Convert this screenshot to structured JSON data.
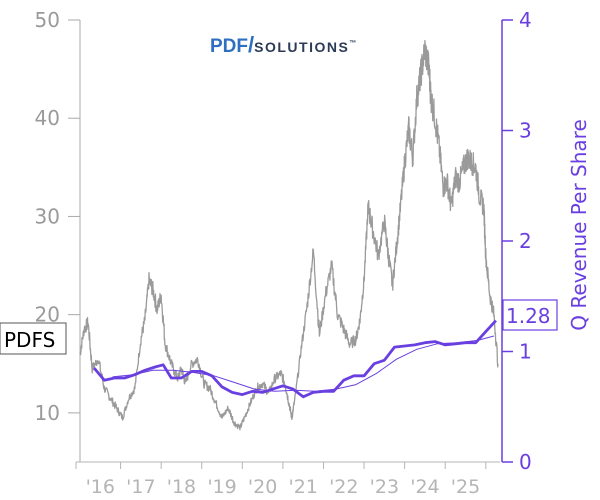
{
  "logo": {
    "part1": "PDF",
    "slash": "/",
    "part2": "SOLUTIONS",
    "tm": "™",
    "color_primary": "#2f6fbf",
    "color_secondary": "#2b3a55"
  },
  "ticker": "PDFS",
  "chart_data": {
    "type": "line",
    "title": "",
    "xlabel": "",
    "x_ticks": [
      "'16",
      "'17",
      "'18",
      "'19",
      "'20",
      "'21",
      "'22",
      "'23",
      "'24",
      "'25"
    ],
    "x_range": [
      2015.0,
      2025.35
    ],
    "y_left": {
      "label": "",
      "range": [
        5,
        50
      ],
      "ticks": [
        10,
        20,
        30,
        40,
        50
      ],
      "color": "#9a9a9a"
    },
    "y_right": {
      "label": "Q Revenue Per Share",
      "range": [
        0,
        4
      ],
      "ticks": [
        0,
        1,
        2,
        3,
        4
      ],
      "color": "#6a3fe0"
    },
    "last_value_label": "1.28",
    "series": [
      {
        "axis": "left",
        "color": "#9a9a9a",
        "noisy": true,
        "x": [
          2015.0,
          2015.1,
          2015.2,
          2015.3,
          2015.45,
          2015.6,
          2015.75,
          2015.9,
          2016.05,
          2016.2,
          2016.35,
          2016.5,
          2016.6,
          2016.7,
          2016.8,
          2016.9,
          2017.0,
          2017.1,
          2017.25,
          2017.4,
          2017.5,
          2017.6,
          2017.75,
          2017.9,
          2018.05,
          2018.2,
          2018.35,
          2018.5,
          2018.65,
          2018.8,
          2018.95,
          2019.05,
          2019.2,
          2019.35,
          2019.5,
          2019.65,
          2019.8,
          2019.95,
          2020.05,
          2020.15,
          2020.22,
          2020.3,
          2020.45,
          2020.6,
          2020.75,
          2020.9,
          2021.05,
          2021.2,
          2021.35,
          2021.5,
          2021.65,
          2021.8,
          2021.9,
          2022.0,
          2022.1,
          2022.2,
          2022.35,
          2022.5,
          2022.6,
          2022.7,
          2022.8,
          2022.9,
          2023.0,
          2023.1,
          2023.2,
          2023.3,
          2023.4,
          2023.5,
          2023.6,
          2023.65,
          2023.75,
          2023.85,
          2023.95,
          2024.05,
          2024.15,
          2024.25,
          2024.35,
          2024.45,
          2024.55,
          2024.65,
          2024.75,
          2024.85,
          2024.95,
          2025.0,
          2025.1,
          2025.2,
          2025.3
        ],
        "y": [
          16,
          18.5,
          19.2,
          14.5,
          15.5,
          12.5,
          11.5,
          10.5,
          9.5,
          11.5,
          12.5,
          17.5,
          19.5,
          23.5,
          22.5,
          20.5,
          22,
          17,
          15,
          13.5,
          14.5,
          13,
          15,
          15.5,
          13,
          12.5,
          11,
          9.5,
          10.5,
          9,
          8.5,
          9.5,
          11,
          12.5,
          13,
          12,
          13.5,
          14,
          13,
          11,
          9.5,
          11.5,
          16.5,
          21,
          26.5,
          18,
          22,
          25,
          20,
          18.5,
          17,
          17.5,
          19.5,
          23.5,
          31,
          29,
          26,
          29.5,
          26,
          23,
          27,
          31,
          35.5,
          39,
          36,
          42,
          44.5,
          47,
          45,
          42,
          40,
          37,
          33,
          33.5,
          31,
          34,
          33.5,
          35,
          36,
          35.5,
          35,
          32,
          31,
          26,
          22,
          20,
          15
        ]
      },
      {
        "axis": "right",
        "color": "#6a3fe0",
        "width": 2.8,
        "x": [
          2015.35,
          2015.6,
          2015.85,
          2016.1,
          2016.35,
          2016.6,
          2016.85,
          2017.05,
          2017.25,
          2017.5,
          2017.75,
          2018.0,
          2018.25,
          2018.5,
          2018.75,
          2019.0,
          2019.25,
          2019.5,
          2019.75,
          2020.0,
          2020.25,
          2020.5,
          2020.75,
          2021.0,
          2021.25,
          2021.5,
          2021.75,
          2022.0,
          2022.25,
          2022.5,
          2022.75,
          2023.0,
          2023.25,
          2023.5,
          2023.75,
          2024.0,
          2024.25,
          2024.5,
          2024.75,
          2025.0,
          2025.25
        ],
        "y": [
          0.85,
          0.74,
          0.76,
          0.76,
          0.79,
          0.83,
          0.86,
          0.88,
          0.76,
          0.76,
          0.82,
          0.82,
          0.78,
          0.68,
          0.63,
          0.61,
          0.64,
          0.63,
          0.66,
          0.69,
          0.66,
          0.59,
          0.63,
          0.64,
          0.64,
          0.74,
          0.78,
          0.78,
          0.89,
          0.92,
          1.04,
          1.05,
          1.06,
          1.08,
          1.09,
          1.06,
          1.07,
          1.08,
          1.08,
          1.18,
          1.28
        ]
      },
      {
        "axis": "right",
        "color": "#6a3fe0",
        "width": 1.0,
        "x": [
          2015.8,
          2016.3,
          2016.8,
          2017.3,
          2017.8,
          2018.3,
          2018.8,
          2019.3,
          2019.8,
          2020.3,
          2020.8,
          2021.3,
          2021.8,
          2022.3,
          2022.8,
          2023.3,
          2023.8,
          2024.3,
          2024.8,
          2025.2
        ],
        "y": [
          0.77,
          0.79,
          0.83,
          0.83,
          0.81,
          0.78,
          0.72,
          0.66,
          0.64,
          0.65,
          0.64,
          0.66,
          0.7,
          0.8,
          0.93,
          1.02,
          1.07,
          1.08,
          1.1,
          1.14
        ]
      }
    ]
  }
}
